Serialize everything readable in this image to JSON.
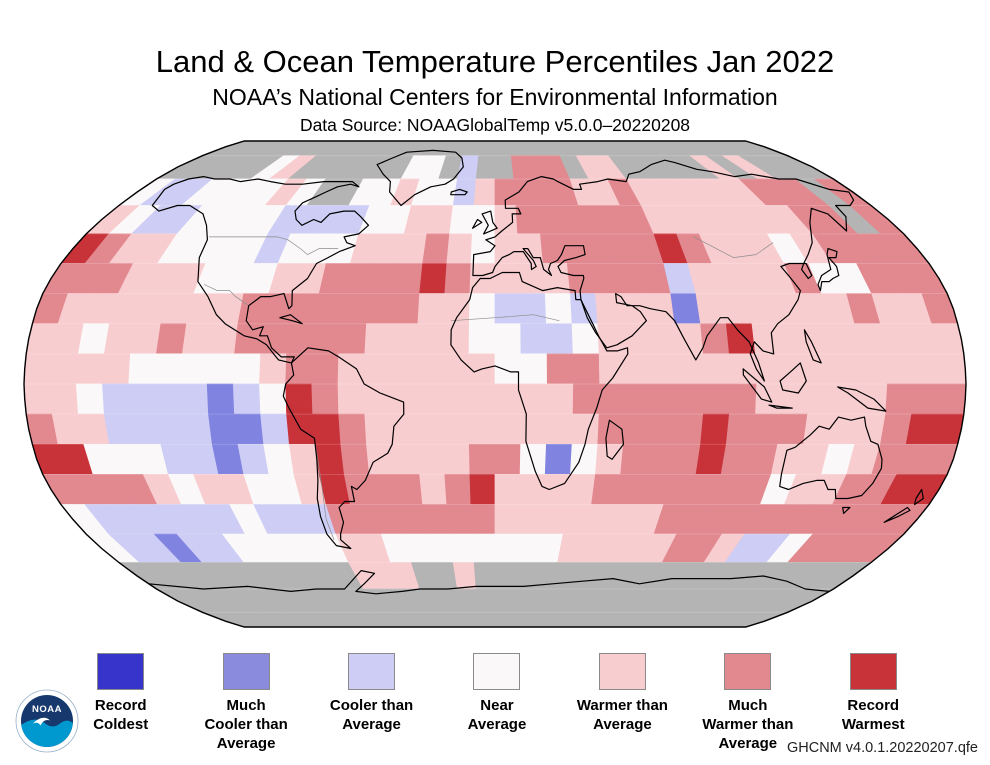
{
  "header": {
    "title": "Land & Ocean Temperature Percentiles Jan 2022",
    "subtitle": "NOAA’s National Centers for Environmental Information",
    "data_source": "Data Source: NOAAGlobalTemp v5.0.0–20220208"
  },
  "footer": {
    "dataset_version": "GHCNM v4.0.1.20220207.qfe"
  },
  "logo": {
    "text": "NOAA",
    "dark_blue": "#16386d",
    "light_blue": "#0099cf"
  },
  "legend": {
    "items": [
      {
        "label": "Record\nColdest",
        "color": "#3634cb",
        "code": "0"
      },
      {
        "label": "Much\nCooler than\nAverage",
        "color": "#8a8bdd",
        "code": "1"
      },
      {
        "label": "Cooler than\nAverage",
        "color": "#cdcdf5",
        "code": "2"
      },
      {
        "label": "Near\nAverage",
        "color": "#faf8f8",
        "code": "3"
      },
      {
        "label": "Warmer than\nAverage",
        "color": "#f8cdd0",
        "code": "4"
      },
      {
        "label": "Much\nWarmer than\nAverage",
        "color": "#e28990",
        "code": "5"
      },
      {
        "label": "Record\nWarmest",
        "color": "#c8333a",
        "code": "6"
      }
    ]
  },
  "map": {
    "projection": "robinson",
    "grid_degrees": 10,
    "palette": {
      "g": "#b4b4b4",
      "0": "#3634cb",
      "1": "#8183e0",
      "2": "#cdcdf5",
      "3": "#faf8f8",
      "4": "#f8cdd0",
      "5": "#e28990",
      "6": "#c8333a"
    },
    "code_meaning": {
      "g": "no data / incomplete",
      "0": "record coldest",
      "1": "much cooler than average",
      "2": "cooler than average",
      "3": "near average",
      "4": "warmer than average",
      "5": "much warmer than average",
      "6": "record warmest"
    },
    "rows": [
      "gggggggggggggggggggggggggggggggggggg",
      "ggggg34gggggg33g2gg555g44ggggg4g4ggg",
      "322333343gg33433245555445444444555g5",
      "4322333322223344334555555444444455g5",
      "654433332333444543445555565444345555",
      "555444333445555654444555524444533555",
      "544444445555555443223244414444445445",
      "443445445555544443322344445644444444",
      "444433333455444444335544444444444444",
      "443222212365444444444555555544444555",
      "544222211266544444444455556555444566",
      "663332212346544445531345556554434555",
      "555543443346555456444455555553445566",
      "322222232225555555444444455555555555",
      "322122333334433333333444445542235555",
      "ggggggggggg444gg4ggggggggggggggggggg",
      "gggggggggggggggggggggggggggggggggggg",
      "gggggggggggggggggggggggggggggggggggg"
    ]
  }
}
